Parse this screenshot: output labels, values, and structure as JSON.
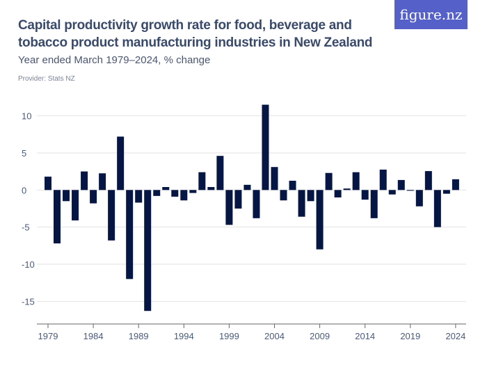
{
  "header": {
    "title": "Capital productivity growth rate for food, beverage and tobacco product manufacturing industries in New Zealand",
    "subtitle": "Year ended March 1979–2024, % change",
    "provider": "Provider: Stats NZ",
    "logo": "figure.nz",
    "logo_color": "#5561c8"
  },
  "chart_data": {
    "type": "bar",
    "title": "Capital productivity growth rate for food, beverage and tobacco product manufacturing industries in New Zealand",
    "subtitle": "Year ended March 1979–2024, % change",
    "xlabel": "",
    "ylabel": "",
    "ylim": [
      -17,
      12
    ],
    "yticks": [
      10,
      5,
      0,
      -5,
      -10,
      -15
    ],
    "xticks": [
      1979,
      1984,
      1989,
      1994,
      1999,
      2004,
      2009,
      2014,
      2019,
      2024
    ],
    "grid": true,
    "bar_color": "#051544",
    "categories": [
      1979,
      1980,
      1981,
      1982,
      1983,
      1984,
      1985,
      1986,
      1987,
      1988,
      1989,
      1990,
      1991,
      1992,
      1993,
      1994,
      1995,
      1996,
      1997,
      1998,
      1999,
      2000,
      2001,
      2002,
      2003,
      2004,
      2005,
      2006,
      2007,
      2008,
      2009,
      2010,
      2011,
      2012,
      2013,
      2014,
      2015,
      2016,
      2017,
      2018,
      2019,
      2020,
      2021,
      2022,
      2023,
      2024
    ],
    "values": [
      1.8,
      -7.2,
      -1.5,
      -4.1,
      2.5,
      -1.8,
      2.25,
      -6.8,
      7.2,
      -12.0,
      -1.7,
      -16.3,
      -0.8,
      0.4,
      -0.9,
      -1.4,
      -0.4,
      2.4,
      0.4,
      4.6,
      -4.7,
      -2.5,
      0.7,
      -3.8,
      11.5,
      3.1,
      -1.4,
      1.25,
      -3.6,
      -1.5,
      -8.0,
      2.3,
      -1.0,
      0.2,
      2.4,
      -1.3,
      -3.8,
      2.75,
      -0.6,
      1.35,
      -0.1,
      -2.2,
      2.55,
      -5.0,
      -0.5,
      1.45
    ]
  }
}
